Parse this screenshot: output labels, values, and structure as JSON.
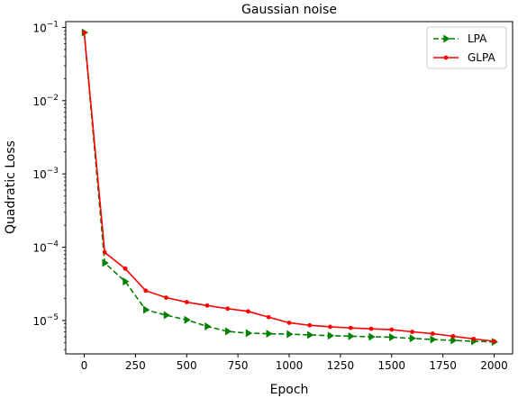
{
  "chart_data": {
    "type": "line",
    "title": "Gaussian noise",
    "xlabel": "Epoch",
    "ylabel": "Quadratic Loss",
    "xlim": [
      -90,
      2090
    ],
    "ylim": [
      3.5e-06,
      0.12
    ],
    "yscale": "log",
    "xticks": [
      0,
      250,
      500,
      750,
      1000,
      1250,
      1500,
      1750,
      2000
    ],
    "xtick_labels": [
      "0",
      "250",
      "500",
      "750",
      "1000",
      "1250",
      "1500",
      "1750",
      "2000"
    ],
    "yticks": [
      1e-05,
      0.0001,
      0.001,
      0.01,
      0.1
    ],
    "ytick_labels": [
      {
        "base": "10",
        "exp": "−5"
      },
      {
        "base": "10",
        "exp": "−4"
      },
      {
        "base": "10",
        "exp": "−3"
      },
      {
        "base": "10",
        "exp": "−2"
      },
      {
        "base": "10",
        "exp": "−1"
      }
    ],
    "grid": false,
    "legend_position": "top-right",
    "x": [
      0,
      100,
      200,
      300,
      400,
      500,
      600,
      700,
      800,
      900,
      1000,
      1100,
      1200,
      1300,
      1400,
      1500,
      1600,
      1700,
      1800,
      1900,
      2000
    ],
    "series": [
      {
        "name": "LPA",
        "color": "#008000",
        "style": "dashed",
        "marker": "triangle-right",
        "values": [
          0.085,
          6.1e-05,
          3.4e-05,
          1.4e-05,
          1.18e-05,
          1.02e-05,
          8.3e-06,
          7.1e-06,
          6.7e-06,
          6.6e-06,
          6.5e-06,
          6.35e-06,
          6.2e-06,
          6.1e-06,
          6e-06,
          5.9e-06,
          5.7e-06,
          5.5e-06,
          5.35e-06,
          5.2e-06,
          5.1e-06
        ]
      },
      {
        "name": "GLPA",
        "color": "#ff0000",
        "style": "solid",
        "marker": "dot",
        "values": [
          0.085,
          8.5e-05,
          5.1e-05,
          2.55e-05,
          2.05e-05,
          1.78e-05,
          1.6e-05,
          1.45e-05,
          1.33e-05,
          1.11e-05,
          9.3e-06,
          8.6e-06,
          8.2e-06,
          7.9e-06,
          7.7e-06,
          7.5e-06,
          7e-06,
          6.6e-06,
          6.1e-06,
          5.6e-06,
          5.2e-06
        ]
      }
    ]
  }
}
